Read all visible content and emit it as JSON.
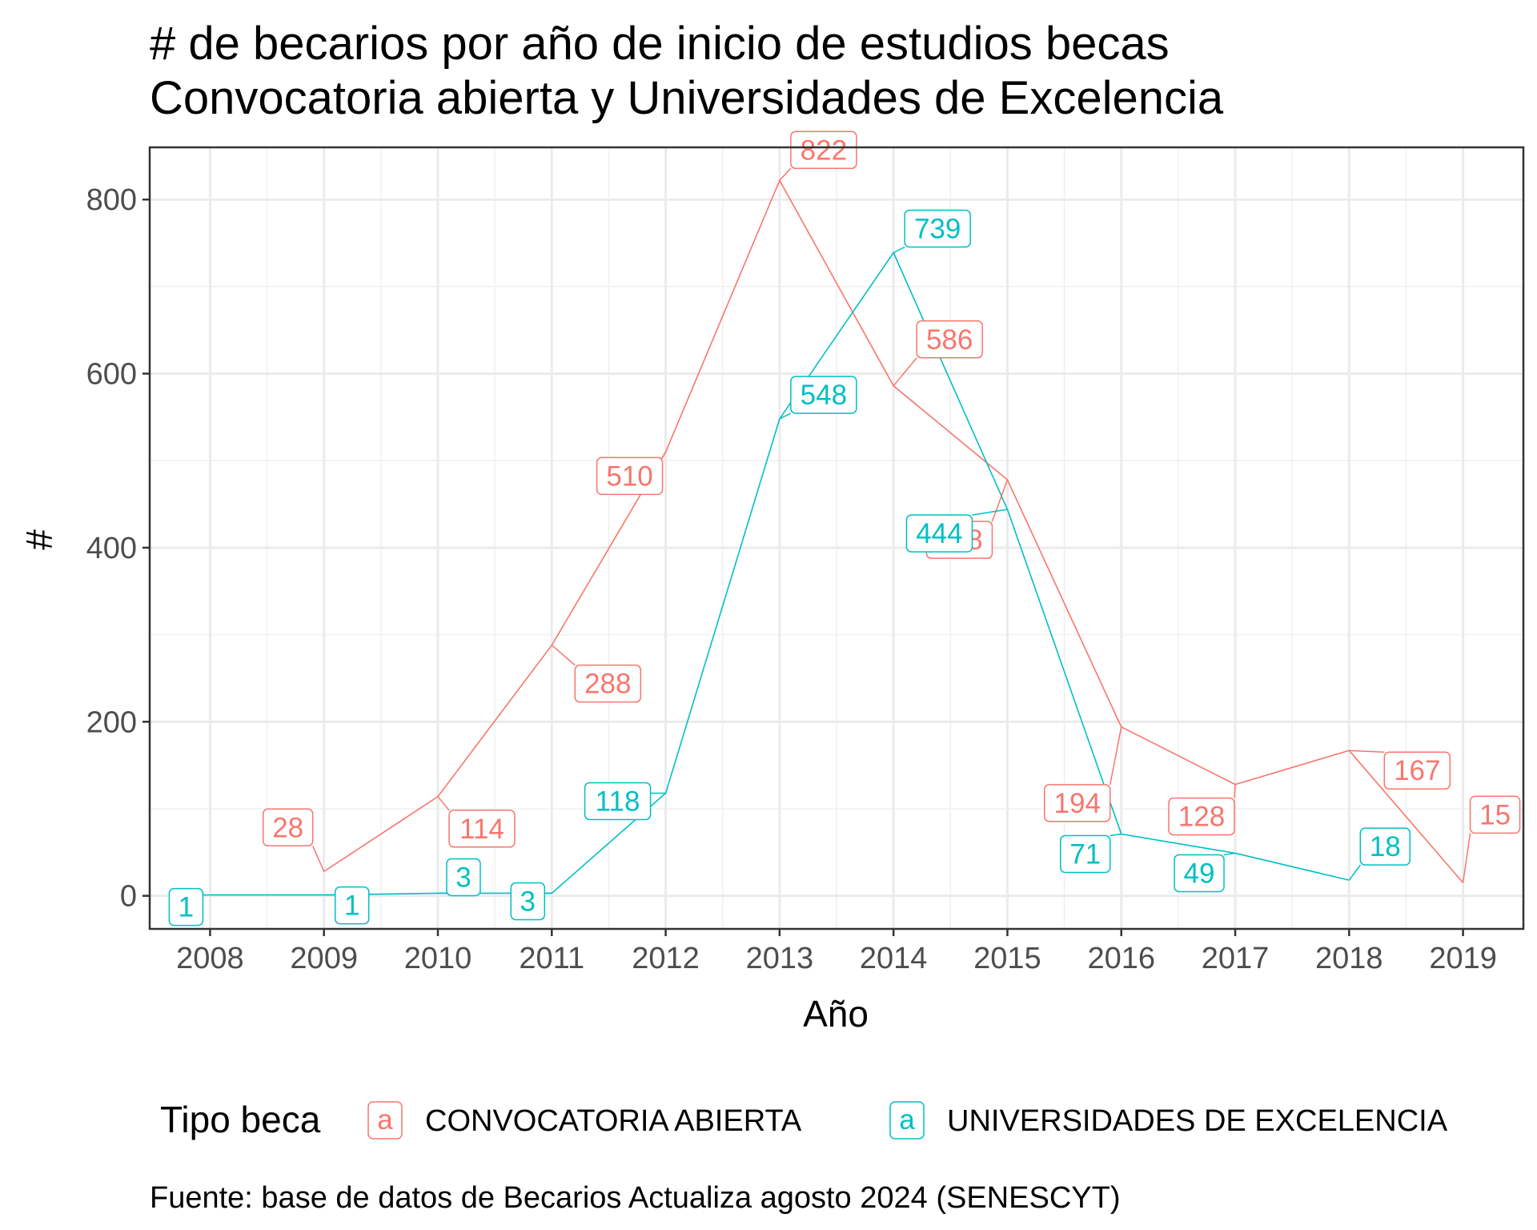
{
  "chart_data": {
    "type": "line",
    "title": "# de becarios por año de inicio de estudios becas",
    "subtitle": "Convocatoria abierta y Universidades de Excelencia",
    "xlabel": "Año",
    "ylabel": "#",
    "x": [
      2008,
      2009,
      2010,
      2011,
      2012,
      2013,
      2014,
      2015,
      2016,
      2017,
      2018,
      2019
    ],
    "xlim": [
      2007.47,
      2019.53
    ],
    "ylim": [
      -38,
      860
    ],
    "y_ticks": [
      0,
      200,
      400,
      600,
      800
    ],
    "grid": true,
    "legend_position": "bottom",
    "legend_title": "Tipo beca",
    "legend_key": "a",
    "caption": "Fuente: base de datos de Becarios Actualiza agosto 2024 (SENESCYT)",
    "series": [
      {
        "name": "CONVOCATORIA ABIERTA",
        "color": "#F8766D",
        "points": [
          [
            2009,
            28
          ],
          [
            2010,
            114
          ],
          [
            2011,
            288
          ],
          [
            2012,
            510
          ],
          [
            2013,
            822
          ],
          [
            2014,
            586
          ],
          [
            2015,
            478
          ],
          [
            2016,
            194
          ],
          [
            2017,
            128
          ],
          [
            2018,
            167
          ],
          [
            2019,
            15
          ]
        ]
      },
      {
        "name": "UNIVERSIDADES DE EXCELENCIA",
        "color": "#00BFC4",
        "points": [
          [
            2008,
            1
          ],
          [
            2009,
            1
          ],
          [
            2010,
            3
          ],
          [
            2011,
            3
          ],
          [
            2012,
            118
          ],
          [
            2013,
            548
          ],
          [
            2014,
            739
          ],
          [
            2015,
            444
          ],
          [
            2016,
            71
          ],
          [
            2017,
            49
          ],
          [
            2018,
            18
          ]
        ]
      }
    ]
  }
}
